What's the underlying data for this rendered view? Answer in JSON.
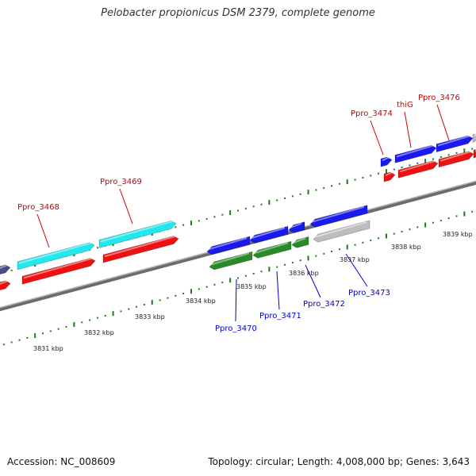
{
  "title": "Pelobacter propionicus DSM 2379, complete genome",
  "footer": {
    "accession": "Accession: NC_008609",
    "topology": "Topology: circular; Length: 4,008,000 bp; Genes: 3,643"
  },
  "colors": {
    "backbone": "#8a8a8a",
    "tick": "#1d7a1d",
    "forward_label": "#cc0000",
    "reverse_label": "#0000cc",
    "feature_red": "#ee1111",
    "feature_blue": "#1a1aee",
    "feature_cyan": "#22e8ee",
    "feature_green": "#2a8a2a",
    "feature_gray": "#bdbdbd",
    "feature_slate": "#4a4a8a"
  },
  "kbp_labels": [
    "3831 kbp",
    "3832 kbp",
    "3833 kbp",
    "3834 kbp",
    "3835 kbp",
    "3836 kbp",
    "3837 kbp",
    "3838 kbp",
    "3839 kbp"
  ],
  "forward_genes": [
    "Ppro_3468",
    "Ppro_3469",
    "Ppro_3474",
    "thiG",
    "Ppro_3476"
  ],
  "reverse_genes": [
    "Ppro_3470",
    "Ppro_3471",
    "Ppro_3472",
    "Ppro_3473"
  ]
}
